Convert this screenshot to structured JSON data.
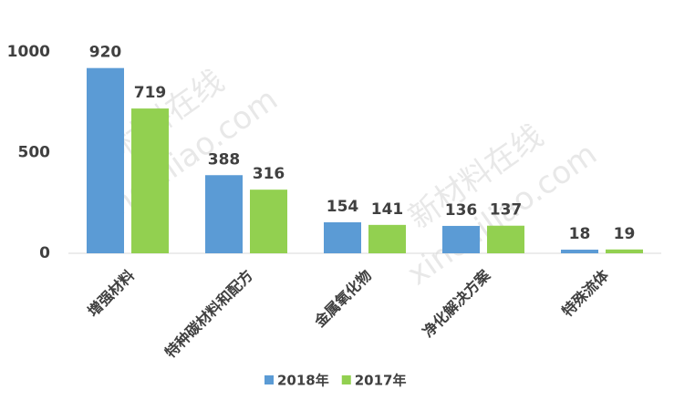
{
  "chart_data": {
    "type": "bar",
    "categories": [
      "增强材料",
      "特种碳材料和配方",
      "金属氧化物",
      "净化解决方案",
      "特殊流体"
    ],
    "series": [
      {
        "name": "2018年",
        "color": "#5b9bd5",
        "values": [
          920,
          388,
          154,
          136,
          18
        ]
      },
      {
        "name": "2017年",
        "color": "#92d050",
        "values": [
          719,
          316,
          141,
          137,
          19
        ]
      }
    ],
    "ylim": [
      0,
      1000
    ],
    "yticks": [
      0,
      500,
      1000
    ],
    "grid": false,
    "legend": "bottom",
    "watermark": [
      "新材料在线",
      "xincailiao.com"
    ]
  }
}
